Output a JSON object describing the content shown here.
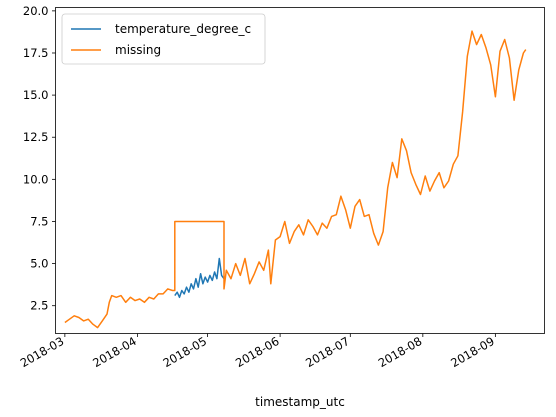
{
  "chart_data": {
    "type": "line",
    "title": "",
    "xlabel": "timestamp_utc",
    "ylabel": "",
    "x_ticks": [
      "2018-03",
      "2018-04",
      "2018-05",
      "2018-06",
      "2018-07",
      "2018-08",
      "2018-09"
    ],
    "y_ticks": [
      "2.5",
      "5.0",
      "7.5",
      "10.0",
      "12.5",
      "15.0",
      "17.5",
      "20.0"
    ],
    "xlim": [
      "2018-02-25",
      "2018-09-22"
    ],
    "ylim": [
      0.85,
      20.2
    ],
    "grid": false,
    "legend_position": "top-left",
    "series": [
      {
        "name": "temperature_degree_c",
        "color": "#1f77b4",
        "points": [
          [
            "2018-04-17",
            3.1
          ],
          [
            "2018-04-18",
            3.3
          ],
          [
            "2018-04-19",
            3.0
          ],
          [
            "2018-04-20",
            3.4
          ],
          [
            "2018-04-21",
            3.2
          ],
          [
            "2018-04-22",
            3.6
          ],
          [
            "2018-04-23",
            3.3
          ],
          [
            "2018-04-24",
            3.8
          ],
          [
            "2018-04-25",
            3.5
          ],
          [
            "2018-04-26",
            4.1
          ],
          [
            "2018-04-27",
            3.6
          ],
          [
            "2018-04-28",
            4.4
          ],
          [
            "2018-04-29",
            3.8
          ],
          [
            "2018-04-30",
            4.2
          ],
          [
            "2018-05-01",
            3.9
          ],
          [
            "2018-05-02",
            4.3
          ],
          [
            "2018-05-03",
            4.0
          ],
          [
            "2018-05-04",
            4.5
          ],
          [
            "2018-05-05",
            4.1
          ],
          [
            "2018-05-06",
            5.3
          ],
          [
            "2018-05-07",
            4.3
          ],
          [
            "2018-05-08",
            4.1
          ]
        ]
      },
      {
        "name": "missing",
        "color": "#ff7f0e",
        "points": [
          [
            "2018-03-01",
            1.5
          ],
          [
            "2018-03-03",
            1.7
          ],
          [
            "2018-03-05",
            1.9
          ],
          [
            "2018-03-07",
            1.8
          ],
          [
            "2018-03-09",
            1.6
          ],
          [
            "2018-03-11",
            1.7
          ],
          [
            "2018-03-13",
            1.4
          ],
          [
            "2018-03-15",
            1.2
          ],
          [
            "2018-03-17",
            1.6
          ],
          [
            "2018-03-19",
            2.0
          ],
          [
            "2018-03-20",
            2.7
          ],
          [
            "2018-03-21",
            3.1
          ],
          [
            "2018-03-23",
            3.0
          ],
          [
            "2018-03-25",
            3.1
          ],
          [
            "2018-03-27",
            2.7
          ],
          [
            "2018-03-29",
            3.0
          ],
          [
            "2018-03-31",
            2.8
          ],
          [
            "2018-04-02",
            2.9
          ],
          [
            "2018-04-04",
            2.7
          ],
          [
            "2018-04-06",
            3.0
          ],
          [
            "2018-04-08",
            2.9
          ],
          [
            "2018-04-10",
            3.2
          ],
          [
            "2018-04-12",
            3.2
          ],
          [
            "2018-04-14",
            3.5
          ],
          [
            "2018-04-16",
            3.4
          ],
          [
            "2018-04-17",
            3.4
          ],
          [
            "2018-04-17",
            7.5
          ],
          [
            "2018-05-08",
            7.5
          ],
          [
            "2018-05-08",
            3.5
          ],
          [
            "2018-05-09",
            4.6
          ],
          [
            "2018-05-11",
            4.1
          ],
          [
            "2018-05-13",
            5.0
          ],
          [
            "2018-05-15",
            4.3
          ],
          [
            "2018-05-17",
            5.3
          ],
          [
            "2018-05-19",
            3.8
          ],
          [
            "2018-05-21",
            4.4
          ],
          [
            "2018-05-23",
            5.1
          ],
          [
            "2018-05-25",
            4.6
          ],
          [
            "2018-05-27",
            5.8
          ],
          [
            "2018-05-28",
            3.8
          ],
          [
            "2018-05-30",
            6.4
          ],
          [
            "2018-06-01",
            6.6
          ],
          [
            "2018-06-03",
            7.5
          ],
          [
            "2018-06-05",
            6.2
          ],
          [
            "2018-06-07",
            6.9
          ],
          [
            "2018-06-09",
            7.3
          ],
          [
            "2018-06-11",
            6.7
          ],
          [
            "2018-06-13",
            7.6
          ],
          [
            "2018-06-15",
            7.2
          ],
          [
            "2018-06-17",
            6.7
          ],
          [
            "2018-06-19",
            7.4
          ],
          [
            "2018-06-21",
            7.1
          ],
          [
            "2018-06-23",
            7.8
          ],
          [
            "2018-06-25",
            7.9
          ],
          [
            "2018-06-27",
            9.0
          ],
          [
            "2018-06-29",
            8.2
          ],
          [
            "2018-07-01",
            7.1
          ],
          [
            "2018-07-03",
            8.4
          ],
          [
            "2018-07-05",
            8.8
          ],
          [
            "2018-07-07",
            7.8
          ],
          [
            "2018-07-09",
            7.9
          ],
          [
            "2018-07-11",
            6.8
          ],
          [
            "2018-07-13",
            6.1
          ],
          [
            "2018-07-15",
            6.9
          ],
          [
            "2018-07-17",
            9.5
          ],
          [
            "2018-07-19",
            11.0
          ],
          [
            "2018-07-21",
            10.1
          ],
          [
            "2018-07-23",
            12.4
          ],
          [
            "2018-07-25",
            11.7
          ],
          [
            "2018-07-27",
            10.4
          ],
          [
            "2018-07-29",
            9.7
          ],
          [
            "2018-07-31",
            9.1
          ],
          [
            "2018-08-02",
            10.2
          ],
          [
            "2018-08-04",
            9.3
          ],
          [
            "2018-08-06",
            9.9
          ],
          [
            "2018-08-08",
            10.4
          ],
          [
            "2018-08-10",
            9.5
          ],
          [
            "2018-08-12",
            9.9
          ],
          [
            "2018-08-14",
            10.9
          ],
          [
            "2018-08-16",
            11.4
          ],
          [
            "2018-08-18",
            14.0
          ],
          [
            "2018-08-20",
            17.3
          ],
          [
            "2018-08-22",
            18.8
          ],
          [
            "2018-08-24",
            18.0
          ],
          [
            "2018-08-26",
            18.6
          ],
          [
            "2018-08-28",
            17.8
          ],
          [
            "2018-08-30",
            16.8
          ],
          [
            "2018-09-01",
            14.9
          ],
          [
            "2018-09-03",
            17.6
          ],
          [
            "2018-09-05",
            18.3
          ],
          [
            "2018-09-07",
            17.2
          ],
          [
            "2018-09-09",
            14.7
          ],
          [
            "2018-09-11",
            16.5
          ],
          [
            "2018-09-13",
            17.5
          ],
          [
            "2018-09-14",
            17.7
          ]
        ]
      }
    ]
  }
}
